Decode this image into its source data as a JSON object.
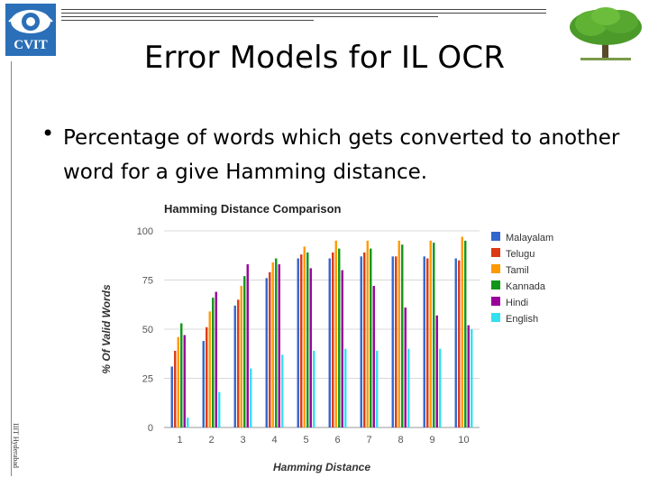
{
  "header": {
    "logo_text": "CVIT",
    "title": "Error Models for IL OCR",
    "side_text": "IIIT Hyderabad"
  },
  "bullet": {
    "text": "Percentage of words which gets converted to another word for a give Hamming distance."
  },
  "chart_data": {
    "type": "bar",
    "title": "Hamming Distance Comparison",
    "xlabel": "Hamming Distance",
    "ylabel": "% Of Valid Words",
    "ylim": [
      0,
      100
    ],
    "yticks": [
      "0",
      "25",
      "50",
      "75",
      "100"
    ],
    "grid": true,
    "legend_position": "right",
    "categories": [
      "1",
      "2",
      "3",
      "4",
      "5",
      "6",
      "7",
      "8",
      "9",
      "10"
    ],
    "series": [
      {
        "name": "Malayalam",
        "color": "#3366cc",
        "values": [
          31,
          44,
          62,
          76,
          86,
          86,
          87,
          87,
          87,
          86
        ]
      },
      {
        "name": "Telugu",
        "color": "#dc3912",
        "values": [
          39,
          51,
          65,
          79,
          88,
          89,
          89,
          87,
          86,
          85
        ]
      },
      {
        "name": "Tamil",
        "color": "#ff9900",
        "values": [
          46,
          59,
          72,
          84,
          92,
          95,
          95,
          95,
          95,
          97
        ]
      },
      {
        "name": "Kannada",
        "color": "#109618",
        "values": [
          53,
          66,
          77,
          86,
          89,
          91,
          91,
          93,
          94,
          95
        ]
      },
      {
        "name": "Hindi",
        "color": "#990099",
        "values": [
          47,
          69,
          83,
          83,
          81,
          80,
          72,
          61,
          57,
          52
        ]
      },
      {
        "name": "English",
        "color": "#33e0f0",
        "values": [
          5,
          18,
          30,
          37,
          39,
          40,
          39,
          40,
          40,
          50
        ]
      }
    ]
  }
}
